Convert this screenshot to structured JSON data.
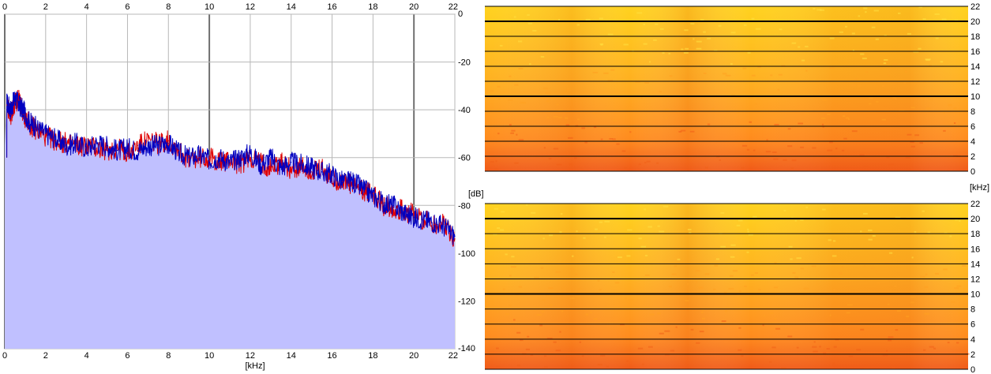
{
  "chart_data": [
    {
      "type": "area",
      "xlabel": "[kHz]",
      "ylabel": "[dB]",
      "xlim": [
        0,
        22
      ],
      "ylim": [
        -140,
        0
      ],
      "x_ticks": [
        0,
        2,
        4,
        6,
        8,
        10,
        12,
        14,
        16,
        18,
        20,
        22
      ],
      "x_tick_labels": [
        "0",
        "2",
        "4",
        "6",
        "8",
        "10",
        "12",
        "14",
        "16",
        "18",
        "20",
        "22"
      ],
      "y_ticks": [
        0,
        -20,
        -40,
        -60,
        -80,
        -100,
        -120,
        -140
      ],
      "y_tick_labels": [
        "0",
        "-20",
        "-40",
        "-60",
        "-80",
        "-100",
        "-120",
        "-140"
      ],
      "grid": true,
      "fill_color": "#c0c0ff",
      "x": [
        0.1,
        0.3,
        0.5,
        0.7,
        0.9,
        1.2,
        1.5,
        2,
        2.5,
        3,
        3.5,
        4,
        4.5,
        5,
        5.5,
        6,
        6.5,
        7,
        7.5,
        8,
        8.5,
        9,
        9.5,
        10,
        10.5,
        11,
        11.5,
        12,
        12.5,
        13,
        13.5,
        14,
        14.5,
        15,
        15.5,
        16,
        16.5,
        17,
        17.5,
        18,
        18.5,
        19,
        19.5,
        20,
        20.5,
        21,
        21.5,
        22
      ],
      "series": [
        {
          "color": "#0000c0",
          "values": [
            -37,
            -40,
            -35,
            -38,
            -40,
            -45,
            -47,
            -50,
            -52,
            -55,
            -54,
            -56,
            -54,
            -55,
            -57,
            -56,
            -57,
            -55,
            -55,
            -54,
            -58,
            -60,
            -59,
            -61,
            -60,
            -62,
            -60,
            -58,
            -63,
            -60,
            -64,
            -62,
            -63,
            -64,
            -66,
            -67,
            -70,
            -70,
            -73,
            -76,
            -79,
            -80,
            -83,
            -85,
            -86,
            -87,
            -89,
            -93
          ]
        },
        {
          "color": "#e00000",
          "values": [
            -38,
            -42,
            -37,
            -36,
            -42,
            -46,
            -48,
            -51,
            -53,
            -54,
            -55,
            -55,
            -56,
            -57,
            -56,
            -58,
            -55,
            -53,
            -54,
            -53,
            -57,
            -61,
            -60,
            -60,
            -62,
            -61,
            -63,
            -60,
            -62,
            -64,
            -62,
            -65,
            -64,
            -66,
            -65,
            -69,
            -70,
            -72,
            -74,
            -75,
            -80,
            -81,
            -82,
            -84,
            -86,
            -88,
            -88,
            -94
          ]
        }
      ]
    },
    {
      "type": "heatmap",
      "ylabel": "[kHz]",
      "ylim": [
        0,
        22
      ],
      "y_ticks": [
        0,
        2,
        4,
        6,
        8,
        10,
        12,
        14,
        16,
        18,
        20,
        22
      ],
      "y_tick_labels": [
        "0",
        "2",
        "4",
        "6",
        "8",
        "10",
        "12",
        "14",
        "16",
        "18",
        "20",
        "22"
      ],
      "colors": {
        "low": "#ffd21e",
        "mid": "#ffa020",
        "high": "#f06018"
      }
    },
    {
      "type": "heatmap",
      "ylabel": "[kHz]",
      "ylim": [
        0,
        22
      ],
      "y_ticks": [
        0,
        2,
        4,
        6,
        8,
        10,
        12,
        14,
        16,
        18,
        20,
        22
      ],
      "y_tick_labels": [
        "0",
        "2",
        "4",
        "6",
        "8",
        "10",
        "12",
        "14",
        "16",
        "18",
        "20",
        "22"
      ],
      "colors": {
        "low": "#ffd21e",
        "mid": "#ffa020",
        "high": "#f06018"
      }
    }
  ]
}
